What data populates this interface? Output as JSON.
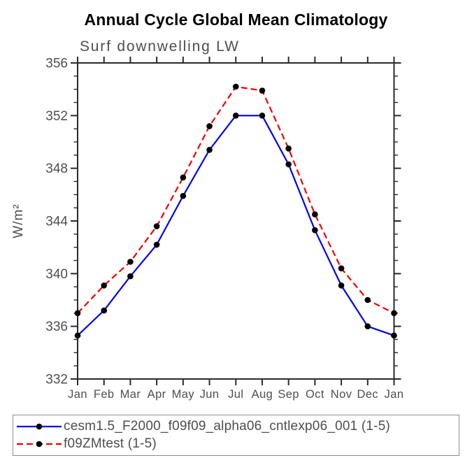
{
  "page": {
    "background": "#ffffff"
  },
  "header": {
    "title": "Annual Cycle Global Mean Climatology",
    "subtitle": "Surf downwelling LW"
  },
  "y_axis": {
    "label": "W/m²"
  },
  "legend": {
    "entries": [
      {
        "label": "cesm1.5_F2000_f09f09_alpha06_cntlexp06_001 (1-5)",
        "color": "#0000f0",
        "line_style": "solid",
        "marker_color": "#000000"
      },
      {
        "label": "f09ZMtest (1-5)",
        "color": "#f00000",
        "line_style": "dashed",
        "marker_color": "#000000"
      }
    ]
  },
  "chart_data": {
    "type": "line",
    "title": "Annual Cycle Global Mean Climatology",
    "subtitle": "Surf downwelling LW",
    "xlabel": "",
    "ylabel": "W/m²",
    "categories": [
      "Jan",
      "Feb",
      "Mar",
      "Apr",
      "May",
      "Jun",
      "Jul",
      "Aug",
      "Sep",
      "Oct",
      "Nov",
      "Dec",
      "Jan"
    ],
    "series": [
      {
        "name": "cesm1.5_F2000_f09f09_alpha06_cntlexp06_001 (1-5)",
        "color": "#0000f0",
        "line_style": "solid",
        "marker": "filled-circle",
        "values": [
          335.3,
          337.2,
          339.8,
          342.2,
          345.9,
          349.4,
          352.0,
          352.0,
          348.3,
          343.3,
          339.1,
          336.0,
          335.3
        ]
      },
      {
        "name": "f09ZMtest (1-5)",
        "color": "#f00000",
        "line_style": "dashed",
        "marker": "filled-circle",
        "values": [
          337.0,
          339.1,
          340.9,
          343.6,
          347.3,
          351.2,
          354.2,
          353.9,
          349.5,
          344.5,
          340.4,
          338.0,
          337.0
        ]
      }
    ],
    "ylim": [
      332,
      356
    ],
    "y_major_step": 4,
    "y_minor_step": 1,
    "grid": false,
    "tick_direction": "out",
    "legend_position": "bottom-left-box",
    "axis_color": "#2a2a2a",
    "text_color": "#4e4e4e",
    "marker_color": "#000000"
  }
}
